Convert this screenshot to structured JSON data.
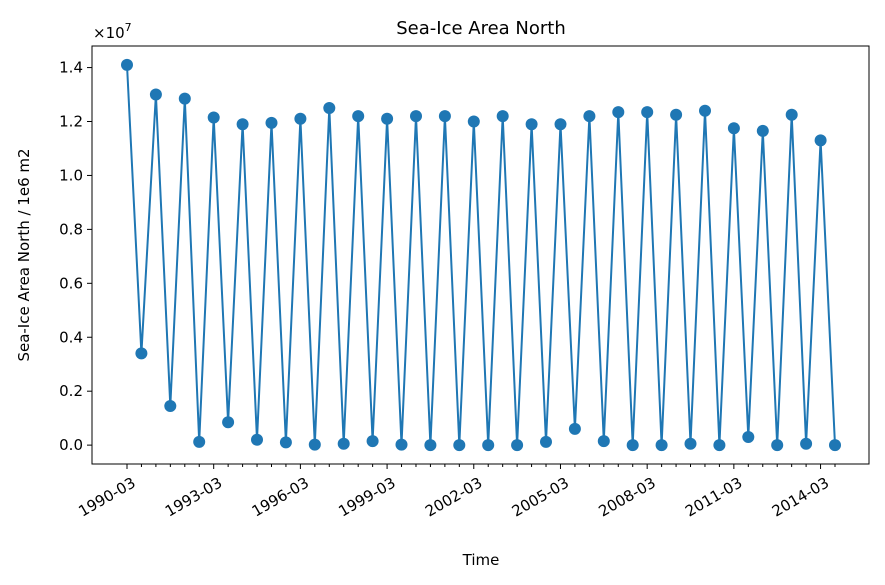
{
  "chart_data": {
    "type": "line",
    "title": "Sea-Ice Area North",
    "xlabel": "Time",
    "ylabel": "Sea-Ice Area North / 1e6 m2",
    "y_multiplier": "×10",
    "y_multiplier_exp": "7",
    "ylim": [
      -0.07,
      1.48
    ],
    "y_ticks": [
      0.0,
      0.2,
      0.4,
      0.6,
      0.8,
      1.0,
      1.2,
      1.4
    ],
    "y_tick_labels": [
      "0.0",
      "0.2",
      "0.4",
      "0.6",
      "0.8",
      "1.0",
      "1.2",
      "1.4"
    ],
    "x_ticks": [
      "1990-03",
      "1993-03",
      "1996-03",
      "1999-03",
      "2002-03",
      "2005-03",
      "2008-03",
      "2011-03",
      "2014-03"
    ],
    "grid": false,
    "marker": "circle",
    "color": "#1f77b4",
    "series": [
      {
        "x": [
          "1990-03",
          "1990-09",
          "1991-03",
          "1991-09",
          "1992-03",
          "1992-09",
          "1993-03",
          "1993-09",
          "1994-03",
          "1994-09",
          "1995-03",
          "1995-09",
          "1996-03",
          "1996-09",
          "1997-03",
          "1997-09",
          "1998-03",
          "1998-09",
          "1999-03",
          "1999-09",
          "2000-03",
          "2000-09",
          "2001-03",
          "2001-09",
          "2002-03",
          "2002-09",
          "2003-03",
          "2003-09",
          "2004-03",
          "2004-09",
          "2005-03",
          "2005-09",
          "2006-03",
          "2006-09",
          "2007-03",
          "2007-09",
          "2008-03",
          "2008-09",
          "2009-03",
          "2009-09",
          "2010-03",
          "2010-09",
          "2011-03",
          "2011-09",
          "2012-03",
          "2012-09",
          "2013-03",
          "2013-09",
          "2014-03",
          "2014-09"
        ],
        "values": [
          1.41,
          0.34,
          1.3,
          0.145,
          1.285,
          0.012,
          1.215,
          0.085,
          1.19,
          0.02,
          1.195,
          0.01,
          1.21,
          0.002,
          1.25,
          0.005,
          1.22,
          0.015,
          1.21,
          0.002,
          1.22,
          0.0,
          1.22,
          0.0,
          1.2,
          0.0,
          1.22,
          0.0,
          1.19,
          0.012,
          1.19,
          0.06,
          1.22,
          0.015,
          1.235,
          0.0,
          1.235,
          0.0,
          1.225,
          0.005,
          1.24,
          0.0,
          1.175,
          0.03,
          1.165,
          0.0,
          1.225,
          0.005,
          1.13,
          0.0
        ]
      }
    ]
  }
}
